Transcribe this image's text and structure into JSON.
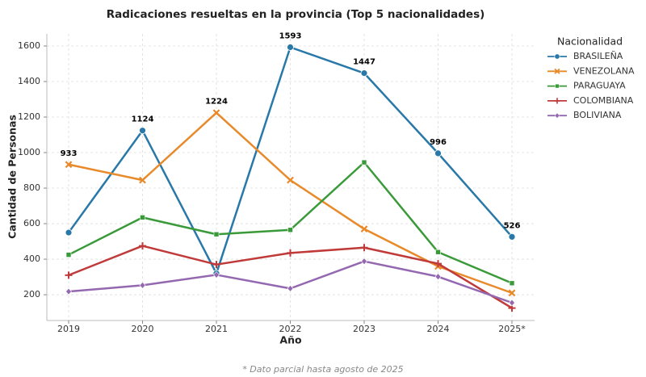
{
  "chart_data": {
    "type": "line",
    "title": "Radicaciones resueltas en la provincia (Top 5 nacionalidades)",
    "x_label": "Año",
    "y_label": "Cantidad de Personas",
    "categories": [
      "2019",
      "2020",
      "2021",
      "2022",
      "2023",
      "2024",
      "2025*"
    ],
    "series": [
      {
        "name": "BRASILEÑA",
        "color": "#2878a8",
        "marker": "circle",
        "values": [
          550,
          1124,
          320,
          1593,
          1447,
          996,
          526
        ]
      },
      {
        "name": "VENEZOLANA",
        "color": "#e8892a",
        "marker": "x",
        "values": [
          933,
          845,
          1224,
          845,
          570,
          360,
          210
        ]
      },
      {
        "name": "PARAGUAYA",
        "color": "#3a9a3a",
        "marker": "square",
        "values": [
          425,
          635,
          540,
          565,
          945,
          440,
          265
        ]
      },
      {
        "name": "COLOMBIANA",
        "color": "#c03a3a",
        "marker": "plus",
        "values": [
          310,
          475,
          370,
          435,
          465,
          375,
          125
        ]
      },
      {
        "name": "BOLIVIANA",
        "color": "#9468b0",
        "marker": "diamond",
        "values": [
          218,
          253,
          312,
          235,
          388,
          302,
          155
        ]
      }
    ],
    "ylim": [
      55,
      1668
    ],
    "yticks": [
      200,
      400,
      600,
      800,
      1000,
      1200,
      1400,
      1600
    ],
    "grid": true,
    "data_labels": "max",
    "legend_title": "Nacionalidad",
    "legend_position": "outside-right",
    "footnote": "* Dato parcial hasta agosto de 2025"
  }
}
